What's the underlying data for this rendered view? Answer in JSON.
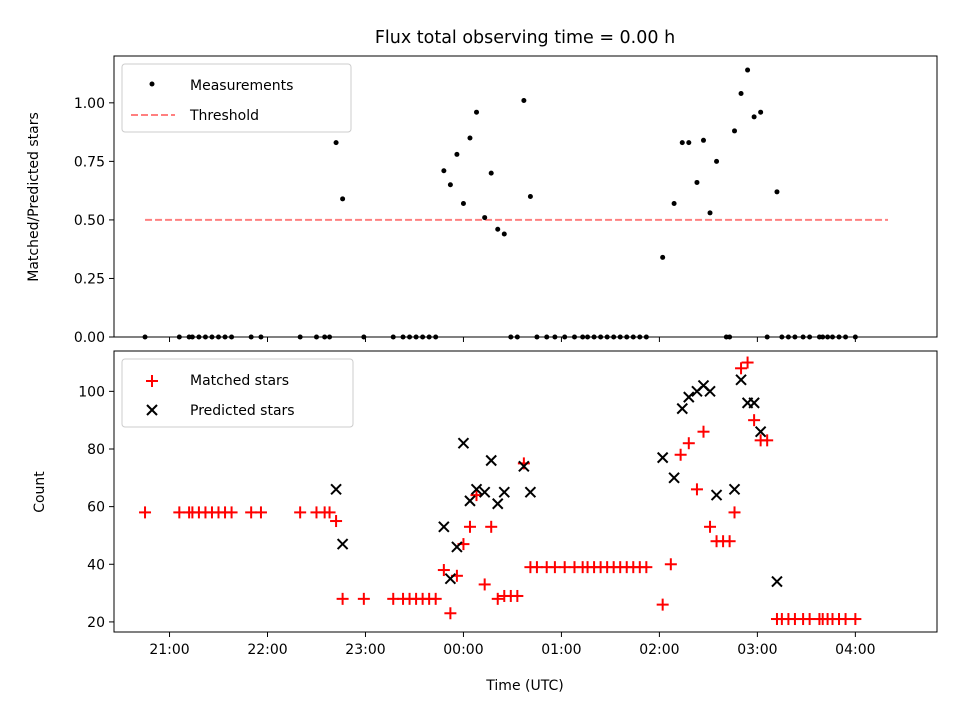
{
  "chart_data": [
    {
      "type": "scatter",
      "title": "Flux total observing time = 0.00 h",
      "xlabel": "",
      "ylabel": "Matched/Predicted stars",
      "xlim": [
        "20:26",
        "04:50"
      ],
      "ylim": [
        0,
        1.2
      ],
      "yticks": [
        0.0,
        0.25,
        0.5,
        0.75,
        1.0
      ],
      "ytick_labels": [
        "0.00",
        "0.25",
        "0.50",
        "0.75",
        "1.00"
      ],
      "xticks": [
        "21:00",
        "22:00",
        "23:00",
        "00:00",
        "01:00",
        "02:00",
        "03:00",
        "04:00"
      ],
      "xtick_labels": [
        "",
        "",
        "",
        "",
        "",
        "",
        "",
        ""
      ],
      "grid": false,
      "legend": {
        "position": "upper-left",
        "entries": [
          "Measurements",
          "Threshold"
        ]
      },
      "threshold": {
        "name": "Threshold",
        "y": 0.5,
        "x_range": [
          "20:45",
          "04:20"
        ],
        "color": "#ff8080",
        "style": "dashed"
      },
      "series": [
        {
          "name": "Measurements",
          "color": "#000000",
          "marker": "dot",
          "points": [
            [
              "20:45",
              0.0
            ],
            [
              "21:06",
              0.0
            ],
            [
              "21:12",
              0.0
            ],
            [
              "21:14",
              0.0
            ],
            [
              "21:18",
              0.0
            ],
            [
              "21:22",
              0.0
            ],
            [
              "21:26",
              0.0
            ],
            [
              "21:30",
              0.0
            ],
            [
              "21:34",
              0.0
            ],
            [
              "21:38",
              0.0
            ],
            [
              "21:50",
              0.0
            ],
            [
              "21:56",
              0.0
            ],
            [
              "22:20",
              0.0
            ],
            [
              "22:30",
              0.0
            ],
            [
              "22:35",
              0.0
            ],
            [
              "22:38",
              0.0
            ],
            [
              "22:42",
              0.83
            ],
            [
              "22:46",
              0.59
            ],
            [
              "22:59",
              0.0
            ],
            [
              "23:17",
              0.0
            ],
            [
              "23:23",
              0.0
            ],
            [
              "23:27",
              0.0
            ],
            [
              "23:31",
              0.0
            ],
            [
              "23:35",
              0.0
            ],
            [
              "23:39",
              0.0
            ],
            [
              "23:43",
              0.0
            ],
            [
              "23:48",
              0.71
            ],
            [
              "23:52",
              0.65
            ],
            [
              "23:56",
              0.78
            ],
            [
              "00:00",
              0.57
            ],
            [
              "00:04",
              0.85
            ],
            [
              "00:08",
              0.96
            ],
            [
              "00:13",
              0.51
            ],
            [
              "00:17",
              0.7
            ],
            [
              "00:21",
              0.46
            ],
            [
              "00:25",
              0.44
            ],
            [
              "00:29",
              0.0
            ],
            [
              "00:33",
              0.0
            ],
            [
              "00:37",
              1.01
            ],
            [
              "00:41",
              0.6
            ],
            [
              "00:45",
              0.0
            ],
            [
              "00:51",
              0.0
            ],
            [
              "00:56",
              0.0
            ],
            [
              "01:02",
              0.0
            ],
            [
              "01:08",
              0.0
            ],
            [
              "01:13",
              0.0
            ],
            [
              "01:16",
              0.0
            ],
            [
              "01:20",
              0.0
            ],
            [
              "01:24",
              0.0
            ],
            [
              "01:28",
              0.0
            ],
            [
              "01:32",
              0.0
            ],
            [
              "01:36",
              0.0
            ],
            [
              "01:40",
              0.0
            ],
            [
              "01:44",
              0.0
            ],
            [
              "01:48",
              0.0
            ],
            [
              "01:52",
              0.0
            ],
            [
              "02:02",
              0.34
            ],
            [
              "02:09",
              0.57
            ],
            [
              "02:14",
              0.83
            ],
            [
              "02:18",
              0.83
            ],
            [
              "02:23",
              0.66
            ],
            [
              "02:27",
              0.84
            ],
            [
              "02:31",
              0.53
            ],
            [
              "02:35",
              0.75
            ],
            [
              "02:41",
              0.0
            ],
            [
              "02:43",
              0.0
            ],
            [
              "02:46",
              0.88
            ],
            [
              "02:50",
              1.04
            ],
            [
              "02:54",
              1.14
            ],
            [
              "02:58",
              0.94
            ],
            [
              "03:02",
              0.96
            ],
            [
              "03:06",
              0.0
            ],
            [
              "03:12",
              0.62
            ],
            [
              "03:15",
              0.0
            ],
            [
              "03:19",
              0.0
            ],
            [
              "03:23",
              0.0
            ],
            [
              "03:28",
              0.0
            ],
            [
              "03:32",
              0.0
            ],
            [
              "03:38",
              0.0
            ],
            [
              "03:40",
              0.0
            ],
            [
              "03:43",
              0.0
            ],
            [
              "03:46",
              0.0
            ],
            [
              "03:50",
              0.0
            ],
            [
              "03:54",
              0.0
            ],
            [
              "04:00",
              0.0
            ]
          ]
        }
      ]
    },
    {
      "type": "scatter",
      "title": "",
      "xlabel": "Time (UTC)",
      "ylabel": "Count",
      "xlim": [
        "20:26",
        "04:50"
      ],
      "ylim": [
        16.5,
        114
      ],
      "yticks": [
        20,
        40,
        60,
        80,
        100
      ],
      "ytick_labels": [
        "20",
        "40",
        "60",
        "80",
        "100"
      ],
      "xticks": [
        "21:00",
        "22:00",
        "23:00",
        "00:00",
        "01:00",
        "02:00",
        "03:00",
        "04:00"
      ],
      "xtick_labels": [
        "21:00",
        "22:00",
        "23:00",
        "00:00",
        "01:00",
        "02:00",
        "03:00",
        "04:00"
      ],
      "grid": false,
      "legend": {
        "position": "upper-left",
        "entries": [
          "Matched stars",
          "Predicted stars"
        ]
      },
      "series": [
        {
          "name": "Matched stars",
          "color": "#ff0000",
          "marker": "plus",
          "points": [
            [
              "20:45",
              58
            ],
            [
              "21:06",
              58
            ],
            [
              "21:12",
              58
            ],
            [
              "21:14",
              58
            ],
            [
              "21:18",
              58
            ],
            [
              "21:22",
              58
            ],
            [
              "21:26",
              58
            ],
            [
              "21:30",
              58
            ],
            [
              "21:34",
              58
            ],
            [
              "21:38",
              58
            ],
            [
              "21:50",
              58
            ],
            [
              "21:56",
              58
            ],
            [
              "22:20",
              58
            ],
            [
              "22:30",
              58
            ],
            [
              "22:35",
              58
            ],
            [
              "22:38",
              58
            ],
            [
              "22:42",
              55
            ],
            [
              "22:46",
              28
            ],
            [
              "22:59",
              28
            ],
            [
              "23:17",
              28
            ],
            [
              "23:23",
              28
            ],
            [
              "23:27",
              28
            ],
            [
              "23:31",
              28
            ],
            [
              "23:35",
              28
            ],
            [
              "23:39",
              28
            ],
            [
              "23:43",
              28
            ],
            [
              "23:48",
              38
            ],
            [
              "23:52",
              23
            ],
            [
              "23:56",
              36
            ],
            [
              "00:00",
              47
            ],
            [
              "00:04",
              53
            ],
            [
              "00:08",
              64
            ],
            [
              "00:13",
              33
            ],
            [
              "00:17",
              53
            ],
            [
              "00:21",
              28
            ],
            [
              "00:25",
              29
            ],
            [
              "00:29",
              29
            ],
            [
              "00:33",
              29
            ],
            [
              "00:37",
              75
            ],
            [
              "00:41",
              39
            ],
            [
              "00:45",
              39
            ],
            [
              "00:51",
              39
            ],
            [
              "00:56",
              39
            ],
            [
              "01:02",
              39
            ],
            [
              "01:08",
              39
            ],
            [
              "01:13",
              39
            ],
            [
              "01:16",
              39
            ],
            [
              "01:20",
              39
            ],
            [
              "01:24",
              39
            ],
            [
              "01:28",
              39
            ],
            [
              "01:32",
              39
            ],
            [
              "01:36",
              39
            ],
            [
              "01:40",
              39
            ],
            [
              "01:44",
              39
            ],
            [
              "01:48",
              39
            ],
            [
              "01:52",
              39
            ],
            [
              "02:02",
              26
            ],
            [
              "02:07",
              40
            ],
            [
              "02:13",
              78
            ],
            [
              "02:18",
              82
            ],
            [
              "02:23",
              66
            ],
            [
              "02:27",
              86
            ],
            [
              "02:31",
              53
            ],
            [
              "02:35",
              48
            ],
            [
              "02:39",
              48
            ],
            [
              "02:43",
              48
            ],
            [
              "02:46",
              58
            ],
            [
              "02:50",
              108
            ],
            [
              "02:54",
              110
            ],
            [
              "02:58",
              90
            ],
            [
              "03:02",
              83
            ],
            [
              "03:06",
              83
            ],
            [
              "03:12",
              21
            ],
            [
              "03:15",
              21
            ],
            [
              "03:19",
              21
            ],
            [
              "03:23",
              21
            ],
            [
              "03:28",
              21
            ],
            [
              "03:32",
              21
            ],
            [
              "03:38",
              21
            ],
            [
              "03:40",
              21
            ],
            [
              "03:43",
              21
            ],
            [
              "03:46",
              21
            ],
            [
              "03:50",
              21
            ],
            [
              "03:54",
              21
            ],
            [
              "04:00",
              21
            ]
          ]
        },
        {
          "name": "Predicted stars",
          "color": "#000000",
          "marker": "x",
          "points": [
            [
              "22:42",
              66
            ],
            [
              "22:46",
              47
            ],
            [
              "23:48",
              53
            ],
            [
              "23:52",
              35
            ],
            [
              "23:56",
              46
            ],
            [
              "00:00",
              82
            ],
            [
              "00:04",
              62
            ],
            [
              "00:08",
              66
            ],
            [
              "00:13",
              65
            ],
            [
              "00:17",
              76
            ],
            [
              "00:21",
              61
            ],
            [
              "00:25",
              65
            ],
            [
              "00:37",
              74
            ],
            [
              "00:41",
              65
            ],
            [
              "02:02",
              77
            ],
            [
              "02:09",
              70
            ],
            [
              "02:14",
              94
            ],
            [
              "02:18",
              98
            ],
            [
              "02:23",
              100
            ],
            [
              "02:27",
              102
            ],
            [
              "02:31",
              100
            ],
            [
              "02:35",
              64
            ],
            [
              "02:46",
              66
            ],
            [
              "02:50",
              104
            ],
            [
              "02:54",
              96
            ],
            [
              "02:58",
              96
            ],
            [
              "03:02",
              86
            ],
            [
              "03:12",
              34
            ]
          ]
        }
      ]
    }
  ]
}
